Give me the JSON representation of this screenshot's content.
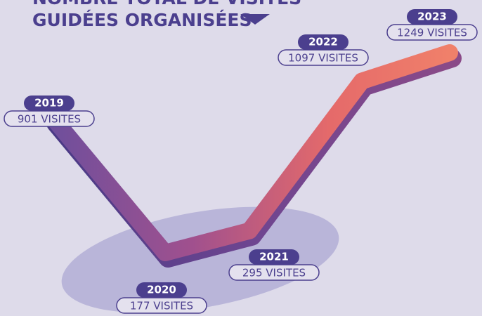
{
  "chart_data": {
    "type": "line",
    "title": [
      "NOMBRE TOTAL DE VISITES",
      "GUIDÉES ORGANISÉES"
    ],
    "categories": [
      "2019",
      "2020",
      "2021",
      "2022",
      "2023"
    ],
    "values": [
      901,
      177,
      295,
      1097,
      1249
    ],
    "value_labels": [
      "901 VISITES",
      "177 VISITES",
      "295 VISITES",
      "1097 VISITES",
      "1249 VISITES"
    ],
    "color": "#4b3f8e"
  }
}
